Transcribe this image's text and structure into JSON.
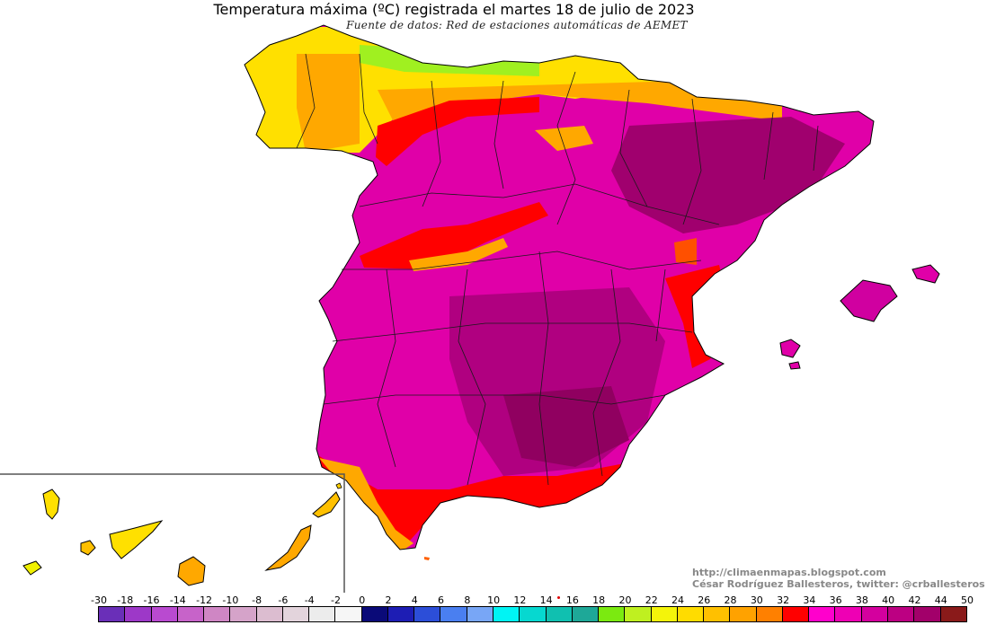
{
  "title": "Temperatura máxima (ºC) registrada el martes 18 de julio de 2023",
  "subtitle": "Fuente de datos: Red de estaciones automáticas de AEMET",
  "credits": {
    "blog": "http://climaenmapas.blogspot.com",
    "author": "César Rodríguez Ballesteros, twitter: @crballesteros"
  },
  "legend": {
    "labels": [
      "-30",
      "-18",
      "-16",
      "-14",
      "-12",
      "-10",
      "-8",
      "-6",
      "-4",
      "-2",
      "0",
      "2",
      "4",
      "6",
      "8",
      "10",
      "12",
      "14",
      "16",
      "18",
      "20",
      "22",
      "24",
      "26",
      "28",
      "30",
      "32",
      "34",
      "36",
      "38",
      "40",
      "42",
      "44",
      "50"
    ],
    "colors": [
      "#6a2fb8",
      "#9d38c8",
      "#b94ad0",
      "#c763c9",
      "#cf86c4",
      "#d5a3c9",
      "#dcbdd0",
      "#e3d4dc",
      "#ececec",
      "#f6f6f6",
      "#0a0a78",
      "#1d1db4",
      "#2c4ed8",
      "#4a7ff0",
      "#78a6f6",
      "#00f4f4",
      "#06d8d0",
      "#10c0b0",
      "#1ea898",
      "#7bea10",
      "#bff020",
      "#f4f40a",
      "#ffdc00",
      "#ffc000",
      "#ffa200",
      "#ff8000",
      "#ff0000",
      "#ff00cc",
      "#ee00b4",
      "#d4009e",
      "#bc0082",
      "#a2006a",
      "#8a1a1a"
    ]
  },
  "map_colors": {
    "dominant": "#e000a8",
    "interior_hot": "#b00080",
    "hottest": "#900060",
    "north_yellow": "#ffe000",
    "north_orange": "#ffa800",
    "red_band": "#ff0000",
    "green_peaks": "#a0f020",
    "borders": "#1a1a1a"
  }
}
